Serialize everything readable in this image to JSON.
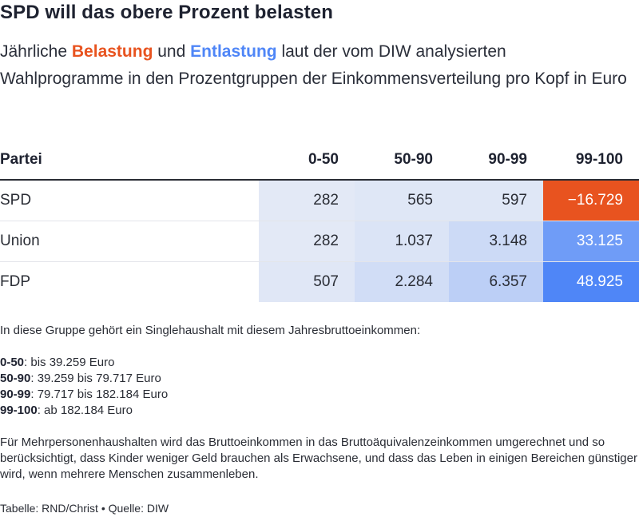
{
  "title": "SPD will das obere Prozent belasten",
  "subtitle": {
    "before": "Jährliche ",
    "burden": "Belastung",
    "middle": " und ",
    "relief": "Entlastung",
    "after": " laut der vom DIW analysierten Wahlprogramme in den Prozentgruppen der Einkommensverteilung pro Kopf in Euro"
  },
  "colors": {
    "burden": "#e8531f",
    "relief": "#4f86f7"
  },
  "chart_data": {
    "type": "table",
    "columns": [
      "Partei",
      "0-50",
      "50-90",
      "90-99",
      "99-100"
    ],
    "rows": [
      {
        "party": "SPD",
        "values": [
          282,
          565,
          597,
          -16729
        ],
        "labels": [
          "282",
          "565",
          "597",
          "−16.729"
        ]
      },
      {
        "party": "Union",
        "values": [
          282,
          1037,
          3148,
          33125
        ],
        "labels": [
          "282",
          "1.037",
          "3.148",
          "33.125"
        ]
      },
      {
        "party": "FDP",
        "values": [
          507,
          2284,
          6357,
          48925
        ],
        "labels": [
          "507",
          "2.284",
          "6.357",
          "48.925"
        ]
      }
    ]
  },
  "notes": {
    "intro": "In diese Gruppe gehört ein Singlehaushalt mit diesem Jahresbruttoeinkommen:",
    "groups": [
      {
        "key": "0-50",
        "text": ": bis 39.259 Euro"
      },
      {
        "key": "50-90",
        "text": ": 39.259 bis 79.717 Euro"
      },
      {
        "key": "90-99",
        "text": ": 79.717 bis 182.184 Euro"
      },
      {
        "key": "99-100",
        "text": ": ab 182.184 Euro"
      }
    ],
    "explanation": "Für Mehrpersonenhaushalten wird das Bruttoeinkommen in das Bruttoäquivalenzeinkommen umgerechnet und so berücksichtigt, dass Kinder weniger Geld brauchen als Erwachsene, und dass das Leben in einigen Bereichen günstiger wird, wenn mehrere Menschen zusammenleben."
  },
  "footer": "Tabelle: RND/Christ • Quelle: DIW"
}
